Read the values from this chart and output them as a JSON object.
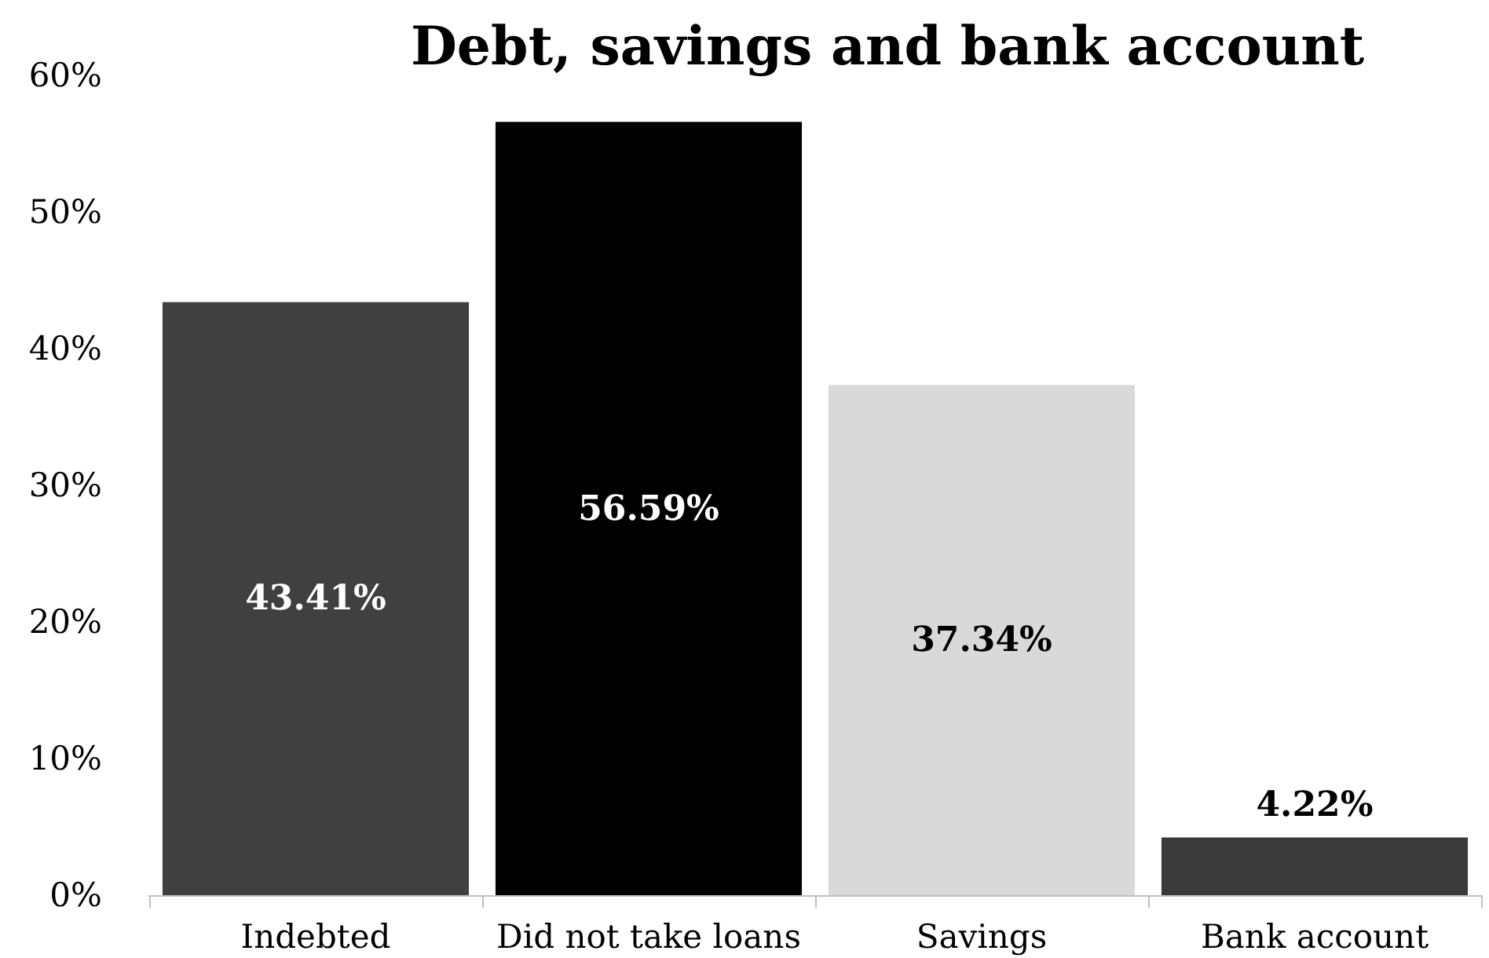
{
  "chart_data": {
    "type": "bar",
    "title": "Debt, savings and bank account",
    "categories": [
      "Indebted",
      "Did not take loans",
      "Savings",
      "Bank account"
    ],
    "values": [
      43.41,
      56.59,
      37.34,
      4.22
    ],
    "colors": [
      "#404040",
      "#000000",
      "#d9d9d9",
      "#3a3a3a"
    ],
    "value_labels": [
      "43.41%",
      "56.59%",
      "37.34%",
      "4.22%"
    ],
    "ylim": [
      0,
      60
    ],
    "yticks": [
      {
        "value": 0,
        "label": "0%"
      },
      {
        "value": 10,
        "label": "10%"
      },
      {
        "value": 20,
        "label": "20%"
      },
      {
        "value": 30,
        "label": "30%"
      },
      {
        "value": 40,
        "label": "40%"
      },
      {
        "value": 50,
        "label": "50%"
      },
      {
        "value": 60,
        "label": "60%"
      }
    ],
    "grid": false
  }
}
